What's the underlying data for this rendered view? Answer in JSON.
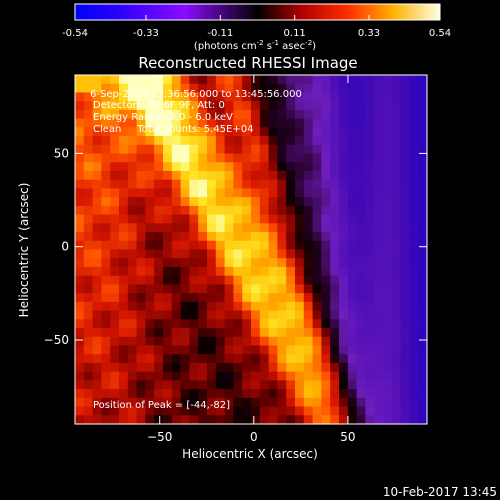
{
  "chart_data": {
    "type": "heatmap",
    "title": "Reconstructed RHESSI Image",
    "xlabel": "Heliocentric X (arcsec)",
    "ylabel": "Heliocentric Y (arcsec)",
    "xlim": [
      -95,
      92
    ],
    "ylim": [
      -95,
      92
    ],
    "x_ticks": [
      -50,
      0,
      50
    ],
    "y_ticks": [
      50,
      0,
      -50
    ],
    "colorbar": {
      "ticks": [
        "-0.54",
        "-0.33",
        "-0.11",
        "0.11",
        "0.33",
        "0.54"
      ],
      "range": [
        -0.54,
        0.54
      ],
      "units_prefix": "(photons cm",
      "units_exp1": "-2",
      "units_mid1": " s",
      "units_exp2": "-1",
      "units_mid2": " asec",
      "units_exp3": "-2",
      "units_suffix": ")"
    },
    "annotations": {
      "time_range": "6-Sep-2014 13:36:56.000 to 13:45:56.000",
      "detectors": "Detectors: 3F 6F 9F, Att: 0",
      "energy_range": "Energy Range: 3.0 - 6.0 keV",
      "clean_counts": "Clean     Total counts: 5.45E+04",
      "peak_position": "Position of Peak = [-44,-82]"
    },
    "timestamp": "10-Feb-2017 13:45",
    "image_summary": {
      "bright_band": "diagonal yellow-white band from upper-left down to lower-center",
      "secondary_band": "red ridge parallel to bright band",
      "dark_region": "purple/blue background on the right side"
    }
  }
}
